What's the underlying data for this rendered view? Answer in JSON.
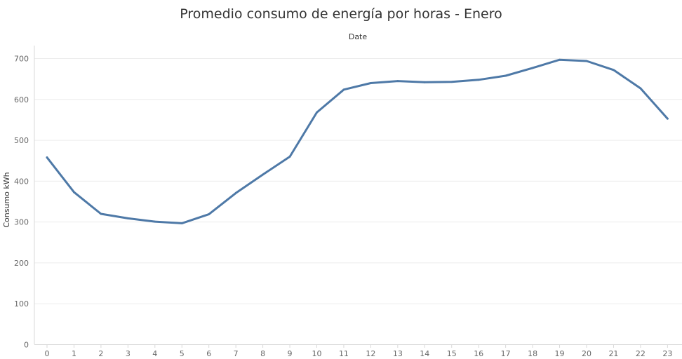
{
  "chart_data": {
    "type": "line",
    "title": "Promedio consumo de energía por horas - Enero",
    "xlabel": "Date",
    "ylabel": "Consumo kWh",
    "categories": [
      "0",
      "1",
      "2",
      "3",
      "4",
      "5",
      "6",
      "7",
      "8",
      "9",
      "10",
      "11",
      "12",
      "13",
      "14",
      "15",
      "16",
      "17",
      "18",
      "19",
      "20",
      "21",
      "22",
      "23"
    ],
    "y_ticks": [
      "0",
      "100",
      "200",
      "300",
      "400",
      "500",
      "600",
      "700"
    ],
    "ylim": [
      0,
      750
    ],
    "grid": true,
    "series": [
      {
        "color": "#4e79a7",
        "values": [
          458,
          373,
          320,
          309,
          301,
          297,
          319,
          371,
          416,
          460,
          568,
          624,
          640,
          645,
          642,
          643,
          648,
          658,
          677,
          697,
          694,
          672,
          627,
          553
        ]
      }
    ]
  }
}
